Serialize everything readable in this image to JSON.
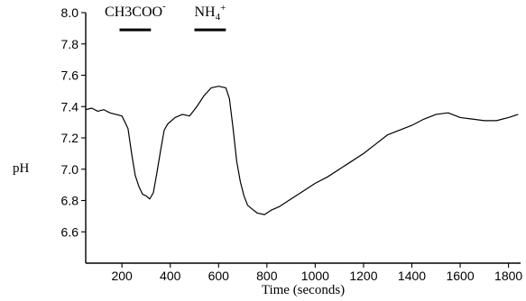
{
  "chart_data": {
    "type": "line",
    "xlabel": "Time  (seconds)",
    "ylabel": "pH",
    "xlim": [
      50,
      1850
    ],
    "ylim": [
      6.4,
      8.0
    ],
    "x_ticks": [
      200,
      400,
      600,
      800,
      1000,
      1200,
      1400,
      1600,
      1800
    ],
    "y_ticks": [
      6.6,
      6.8,
      7.0,
      7.2,
      7.4,
      7.6,
      7.8,
      8.0
    ],
    "x_tick_labels": [
      "200",
      "400",
      "600",
      "800",
      "1000",
      "1200",
      "1400",
      "1600",
      "1800"
    ],
    "y_tick_labels": [
      "6.6",
      "6.8",
      "7.0",
      "7.2",
      "7.4",
      "7.6",
      "7.8",
      "8.0"
    ],
    "annotations": [
      {
        "label_main": "CH3COO",
        "label_sup": "-",
        "x_range": [
          190,
          320
        ],
        "bar_y": 7.89
      },
      {
        "label_main": "NH",
        "label_sub": "4",
        "label_sup": "+",
        "x_range": [
          500,
          630
        ],
        "bar_y": 7.89
      }
    ],
    "series": [
      {
        "x": [
          50,
          75,
          100,
          125,
          150,
          175,
          200,
          225,
          240,
          255,
          270,
          285,
          300,
          315,
          330,
          345,
          360,
          375,
          390,
          420,
          450,
          480,
          510,
          540,
          570,
          600,
          630,
          645,
          660,
          675,
          690,
          705,
          720,
          735,
          760,
          790,
          820,
          850,
          900,
          950,
          1000,
          1050,
          1100,
          1150,
          1200,
          1250,
          1300,
          1350,
          1400,
          1450,
          1500,
          1550,
          1600,
          1650,
          1700,
          1750,
          1800,
          1840
        ],
        "y": [
          7.38,
          7.39,
          7.37,
          7.38,
          7.36,
          7.35,
          7.34,
          7.26,
          7.1,
          6.96,
          6.89,
          6.84,
          6.83,
          6.81,
          6.85,
          6.98,
          7.12,
          7.25,
          7.29,
          7.33,
          7.35,
          7.34,
          7.4,
          7.47,
          7.52,
          7.53,
          7.52,
          7.45,
          7.26,
          7.05,
          6.92,
          6.83,
          6.77,
          6.75,
          6.72,
          6.71,
          6.74,
          6.76,
          6.81,
          6.86,
          6.91,
          6.95,
          7.0,
          7.05,
          7.1,
          7.16,
          7.22,
          7.25,
          7.28,
          7.32,
          7.35,
          7.36,
          7.33,
          7.32,
          7.31,
          7.31,
          7.33,
          7.35
        ]
      }
    ]
  }
}
